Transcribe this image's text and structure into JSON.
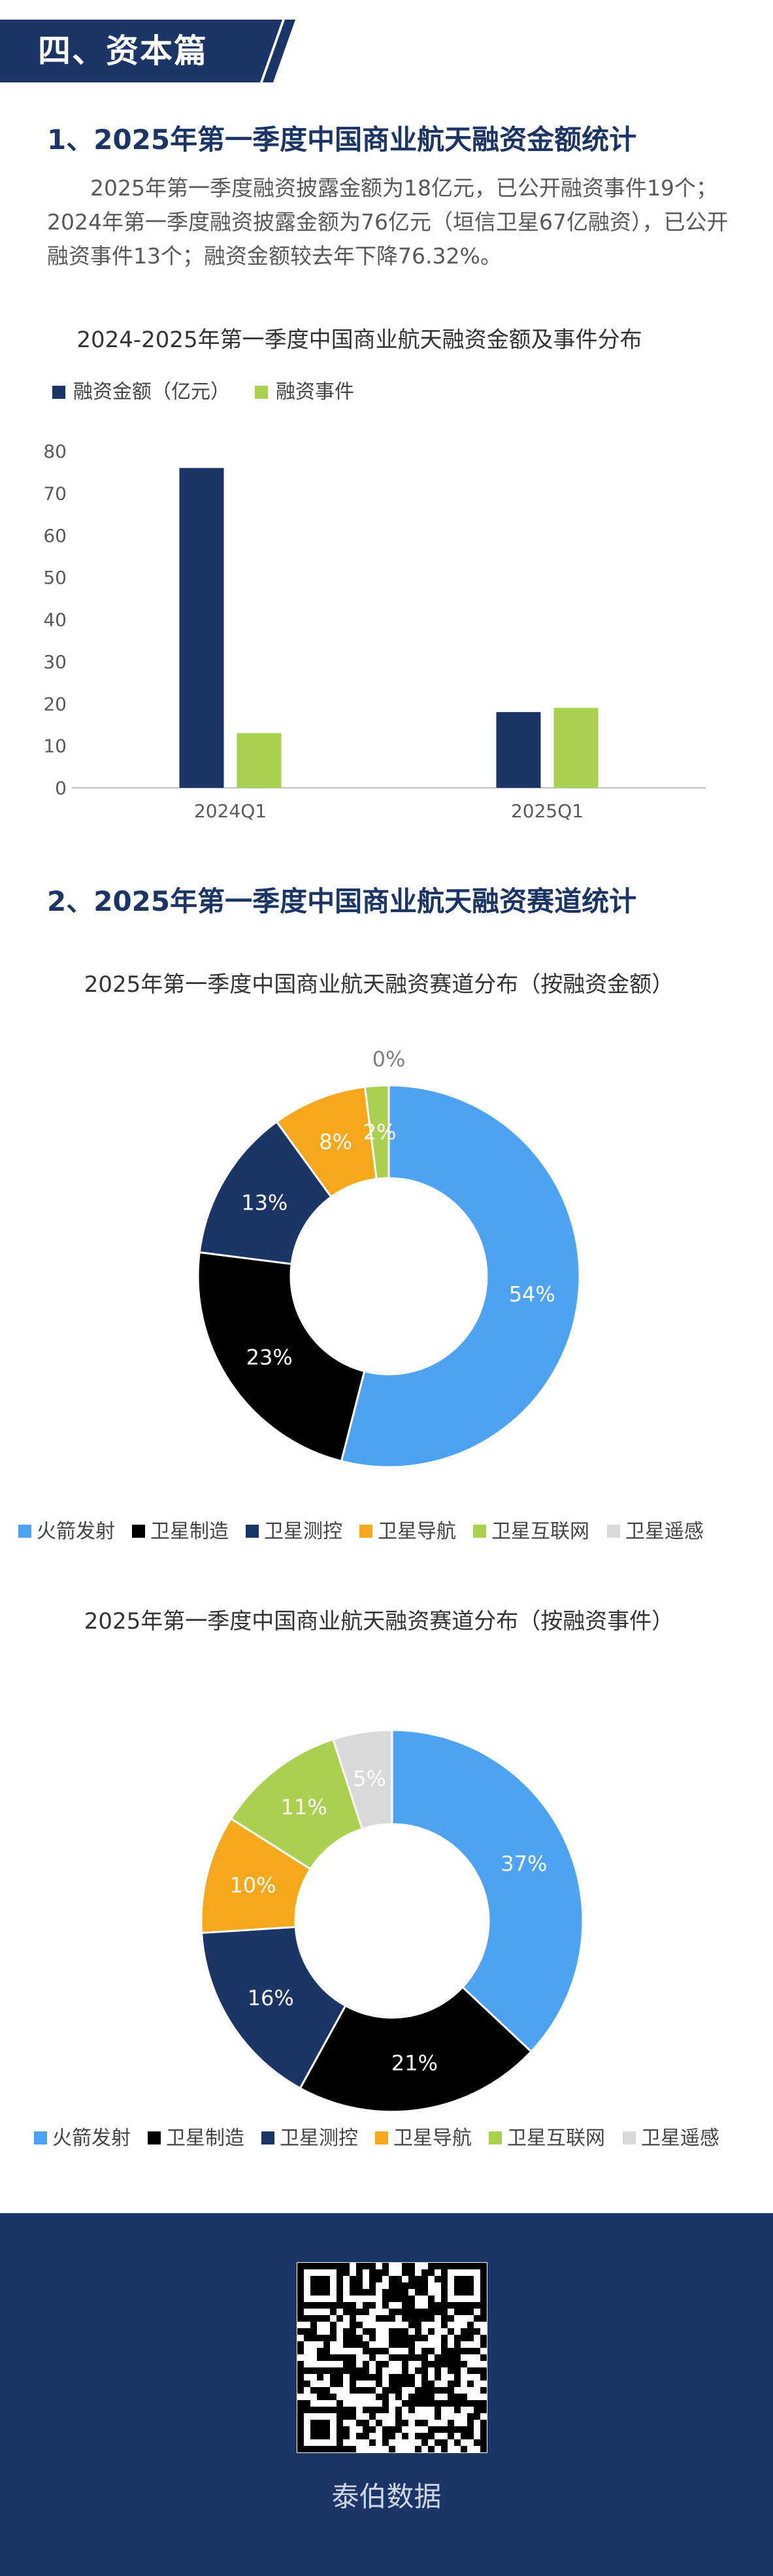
{
  "section": {
    "title": "四、资本篇"
  },
  "s1": {
    "heading": "1、2025年第一季度中国商业航天融资金额统计",
    "para": "2025年第一季度融资披露金额为18亿元，已公开融资事件19个；2024年第一季度融资披露金额为76亿元（垣信卫星67亿融资），已公开融资事件13个；融资金额较去年下降76.32%。"
  },
  "s2": {
    "heading": "2、2025年第一季度中国商业航天融资赛道统计"
  },
  "footer": {
    "label": "泰伯数据",
    "qr_icon": "qr-code-icon"
  },
  "chart_data": [
    {
      "type": "bar",
      "title": "2024-2025年第一季度中国商业航天融资金额及事件分布",
      "categories": [
        "2024Q1",
        "2025Q1"
      ],
      "series": [
        {
          "name": "融资金额（亿元）",
          "values": [
            76,
            18
          ],
          "color": "#1b3566"
        },
        {
          "name": "融资事件",
          "values": [
            13,
            19
          ],
          "color": "#a9d04f"
        }
      ],
      "ylim": [
        0,
        80
      ],
      "yticks": [
        0,
        10,
        20,
        30,
        40,
        50,
        60,
        70,
        80
      ],
      "legend": "top-left",
      "grid": false
    },
    {
      "type": "pie",
      "title": "2025年第一季度中国商业航天融资赛道分布（按融资金额）",
      "labels": [
        "火箭发射",
        "卫星制造",
        "卫星测控",
        "卫星导航",
        "卫星互联网",
        "卫星遥感"
      ],
      "values": [
        54,
        23,
        13,
        8,
        2,
        0
      ],
      "value_labels": [
        "54%",
        "23%",
        "13%",
        "8%",
        "2%",
        "0%"
      ],
      "colors": [
        "#4da3f1",
        "#000000",
        "#1b3566",
        "#f5a81c",
        "#a9d04f",
        "#d9d9d9"
      ],
      "legend": "bottom"
    },
    {
      "type": "pie",
      "title": "2025年第一季度中国商业航天融资赛道分布（按融资事件）",
      "labels": [
        "火箭发射",
        "卫星制造",
        "卫星测控",
        "卫星导航",
        "卫星互联网",
        "卫星遥感"
      ],
      "values": [
        37,
        21,
        16,
        10,
        11,
        5
      ],
      "value_labels": [
        "37%",
        "21%",
        "16%",
        "10%",
        "11%",
        "5%"
      ],
      "colors": [
        "#4da3f1",
        "#000000",
        "#1b3566",
        "#f5a81c",
        "#a9d04f",
        "#d9d9d9"
      ],
      "legend": "bottom"
    }
  ]
}
